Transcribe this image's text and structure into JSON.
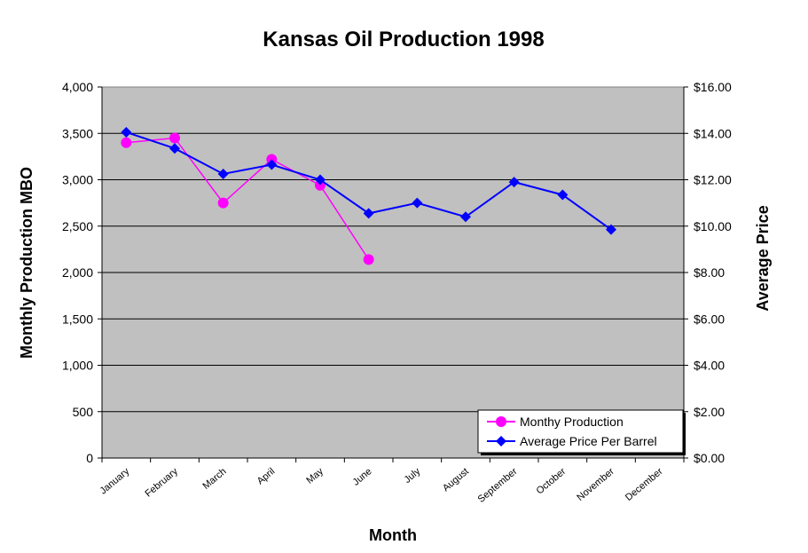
{
  "chart_data": {
    "type": "line",
    "title": "Kansas Oil Production 1998",
    "xlabel": "Month",
    "ylabel": "Monthly Production MBO",
    "y2label": "Average Price",
    "categories": [
      "January",
      "February",
      "March",
      "April",
      "May",
      "June",
      "July",
      "August",
      "September",
      "October",
      "November",
      "December"
    ],
    "ylim": [
      0,
      4000
    ],
    "y_ticks": [
      "0",
      "500",
      "1,000",
      "1,500",
      "2,000",
      "2,500",
      "3,000",
      "3,500",
      "4,000"
    ],
    "y2lim": [
      0,
      16
    ],
    "y2_ticks": [
      "$0.00",
      "$2.00",
      "$4.00",
      "$6.00",
      "$8.00",
      "$10.00",
      "$12.00",
      "$14.00",
      "$16.00"
    ],
    "grid": true,
    "plot_background": "#c0c0c0",
    "legend_position": "bottom-right",
    "series": [
      {
        "name": "Monthy Production",
        "axis": "left",
        "color": "#ff00ff",
        "marker": "circle",
        "values": [
          3400,
          3450,
          2750,
          3220,
          2940,
          2140,
          null,
          null,
          null,
          null,
          null,
          null
        ]
      },
      {
        "name": "Average Price Per Barrel",
        "axis": "right",
        "color": "#0000ff",
        "marker": "diamond",
        "values": [
          14.05,
          13.35,
          12.25,
          12.65,
          12.0,
          10.55,
          11.0,
          10.4,
          11.9,
          11.35,
          9.85,
          null
        ]
      }
    ]
  }
}
